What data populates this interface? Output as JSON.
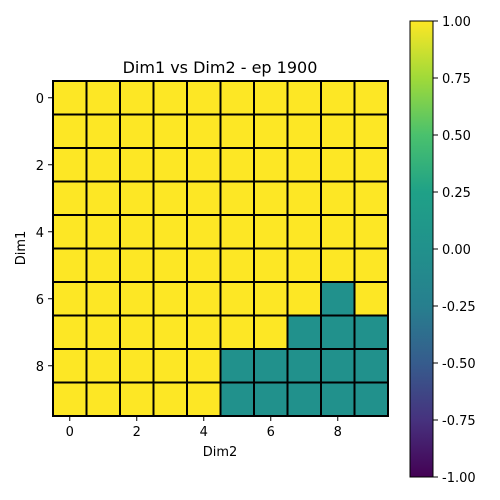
{
  "chart_data": {
    "type": "heatmap",
    "title": "Dim1 vs Dim2 - ep 1900",
    "xlabel": "Dim2",
    "ylabel": "Dim1",
    "x_ticks": [
      "0",
      "2",
      "4",
      "6",
      "8"
    ],
    "y_ticks": [
      "0",
      "2",
      "4",
      "6",
      "8"
    ],
    "x_tick_values": [
      0,
      2,
      4,
      6,
      8
    ],
    "y_tick_values": [
      0,
      2,
      4,
      6,
      8
    ],
    "rows": 10,
    "cols": 10,
    "values": [
      [
        1,
        1,
        1,
        1,
        1,
        1,
        1,
        1,
        1,
        1
      ],
      [
        1,
        1,
        1,
        1,
        1,
        1,
        1,
        1,
        1,
        1
      ],
      [
        1,
        1,
        1,
        1,
        1,
        1,
        1,
        1,
        1,
        1
      ],
      [
        1,
        1,
        1,
        1,
        1,
        1,
        1,
        1,
        1,
        1
      ],
      [
        1,
        1,
        1,
        1,
        1,
        1,
        1,
        1,
        1,
        1
      ],
      [
        1,
        1,
        1,
        1,
        1,
        1,
        1,
        1,
        1,
        1
      ],
      [
        1,
        1,
        1,
        1,
        1,
        1,
        1,
        1,
        0,
        1
      ],
      [
        1,
        1,
        1,
        1,
        1,
        1,
        1,
        0,
        0,
        0
      ],
      [
        1,
        1,
        1,
        1,
        1,
        0,
        0,
        0,
        0,
        0
      ],
      [
        1,
        1,
        1,
        1,
        1,
        0,
        0,
        0,
        0,
        0
      ]
    ],
    "colorbar": {
      "min": -1.0,
      "max": 1.0,
      "ticks": [
        "1.00",
        "0.75",
        "0.50",
        "0.25",
        "0.00",
        "-0.25",
        "-0.50",
        "-0.75",
        "-1.00"
      ],
      "tick_values": [
        1.0,
        0.75,
        0.5,
        0.25,
        0.0,
        -0.25,
        -0.5,
        -0.75,
        -1.0
      ],
      "colormap": "viridis"
    },
    "colors": {
      "high": "#fde725",
      "mid": "#21918c",
      "low": "#440154",
      "cell_border": "#000000"
    }
  }
}
